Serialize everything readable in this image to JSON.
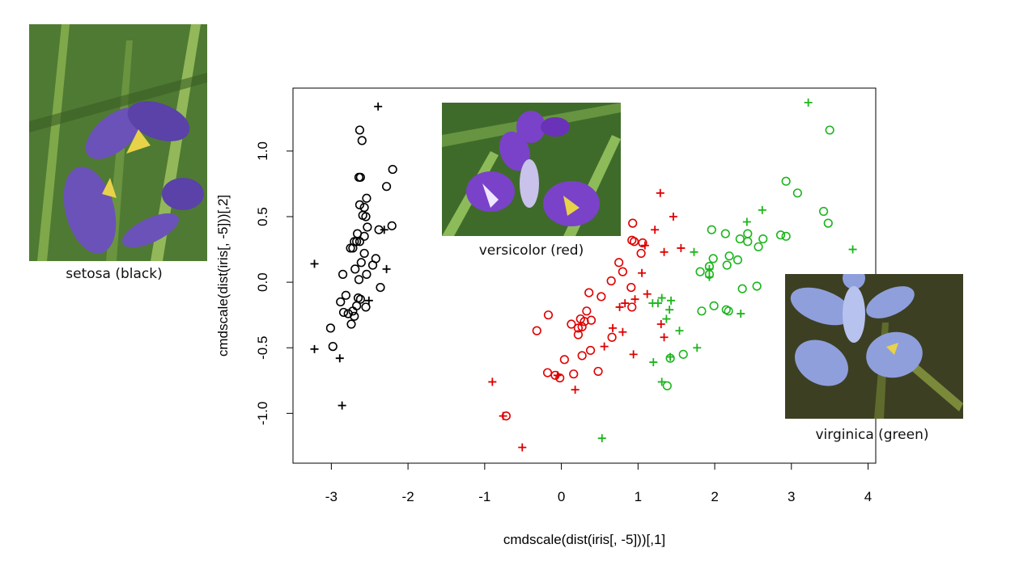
{
  "chart_data": {
    "type": "scatter",
    "xlabel": "cmdscale(dist(iris[, -5]))[,1]",
    "ylabel": "cmdscale(dist(iris[, -5]))[,2]",
    "xlim": [
      -3.5,
      4.1
    ],
    "ylim": [
      -1.38,
      1.48
    ],
    "xticks": [
      -3,
      -2,
      -1,
      0,
      1,
      2,
      3,
      4
    ],
    "yticks": [
      -1.0,
      -0.5,
      0.0,
      0.5,
      1.0
    ],
    "ytick_labels": [
      "-1.0",
      "-0.5",
      "0.0",
      "0.5",
      "1.0"
    ],
    "series": [
      {
        "name": "setosa (black)",
        "color": "#000000",
        "points_circle": [
          [
            -2.63,
            1.16
          ],
          [
            -2.6,
            1.08
          ],
          [
            -2.2,
            0.86
          ],
          [
            -2.64,
            0.8
          ],
          [
            -2.62,
            0.8
          ],
          [
            -2.28,
            0.73
          ],
          [
            -2.54,
            0.64
          ],
          [
            -2.63,
            0.59
          ],
          [
            -2.57,
            0.57
          ],
          [
            -2.59,
            0.51
          ],
          [
            -2.55,
            0.5
          ],
          [
            -2.21,
            0.43
          ],
          [
            -2.53,
            0.42
          ],
          [
            -2.66,
            0.37
          ],
          [
            -2.38,
            0.4
          ],
          [
            -2.57,
            0.35
          ],
          [
            -2.7,
            0.31
          ],
          [
            -2.67,
            0.31
          ],
          [
            -2.63,
            0.31
          ],
          [
            -2.75,
            0.26
          ],
          [
            -2.72,
            0.26
          ],
          [
            -2.57,
            0.22
          ],
          [
            -2.42,
            0.18
          ],
          [
            -2.46,
            0.13
          ],
          [
            -2.61,
            0.15
          ],
          [
            -2.69,
            0.1
          ],
          [
            -2.85,
            0.06
          ],
          [
            -2.54,
            0.06
          ],
          [
            -2.64,
            0.02
          ],
          [
            -2.36,
            -0.04
          ],
          [
            -2.81,
            -0.1
          ],
          [
            -2.65,
            -0.12
          ],
          [
            -2.62,
            -0.13
          ],
          [
            -2.88,
            -0.15
          ],
          [
            -2.67,
            -0.18
          ],
          [
            -2.55,
            -0.19
          ],
          [
            -2.72,
            -0.22
          ],
          [
            -2.84,
            -0.23
          ],
          [
            -2.78,
            -0.24
          ],
          [
            -2.7,
            -0.26
          ],
          [
            -2.74,
            -0.32
          ],
          [
            -3.01,
            -0.35
          ],
          [
            -2.98,
            -0.49
          ]
        ],
        "points_plus": [
          [
            -2.39,
            1.34
          ],
          [
            -2.31,
            0.4
          ],
          [
            -3.22,
            0.14
          ],
          [
            -2.28,
            0.1
          ],
          [
            -2.51,
            -0.14
          ],
          [
            -3.22,
            -0.51
          ],
          [
            -2.89,
            -0.58
          ],
          [
            -2.86,
            -0.94
          ]
        ]
      },
      {
        "name": "versicolor (red)",
        "color": "#df0000",
        "points_circle": [
          [
            0.93,
            0.45
          ],
          [
            0.92,
            0.32
          ],
          [
            0.95,
            0.31
          ],
          [
            1.06,
            0.3
          ],
          [
            1.04,
            0.22
          ],
          [
            0.75,
            0.15
          ],
          [
            0.8,
            0.08
          ],
          [
            0.65,
            0.01
          ],
          [
            0.91,
            -0.04
          ],
          [
            0.36,
            -0.08
          ],
          [
            0.52,
            -0.11
          ],
          [
            0.92,
            -0.19
          ],
          [
            0.33,
            -0.22
          ],
          [
            -0.17,
            -0.25
          ],
          [
            0.25,
            -0.28
          ],
          [
            0.39,
            -0.29
          ],
          [
            0.3,
            -0.3
          ],
          [
            0.13,
            -0.32
          ],
          [
            0.27,
            -0.34
          ],
          [
            0.22,
            -0.35
          ],
          [
            -0.32,
            -0.37
          ],
          [
            0.22,
            -0.4
          ],
          [
            0.66,
            -0.42
          ],
          [
            0.38,
            -0.52
          ],
          [
            0.27,
            -0.56
          ],
          [
            0.04,
            -0.59
          ],
          [
            0.48,
            -0.68
          ],
          [
            -0.18,
            -0.69
          ],
          [
            0.16,
            -0.7
          ],
          [
            -0.08,
            -0.71
          ],
          [
            -0.02,
            -0.73
          ],
          [
            -0.72,
            -1.02
          ]
        ],
        "points_plus": [
          [
            1.29,
            0.68
          ],
          [
            1.46,
            0.5
          ],
          [
            1.22,
            0.4
          ],
          [
            1.09,
            0.28
          ],
          [
            1.56,
            0.26
          ],
          [
            1.34,
            0.23
          ],
          [
            1.05,
            0.07
          ],
          [
            1.12,
            -0.09
          ],
          [
            0.96,
            -0.13
          ],
          [
            0.83,
            -0.16
          ],
          [
            0.76,
            -0.19
          ],
          [
            1.3,
            -0.32
          ],
          [
            0.67,
            -0.35
          ],
          [
            0.8,
            -0.38
          ],
          [
            1.34,
            -0.42
          ],
          [
            0.56,
            -0.49
          ],
          [
            0.94,
            -0.55
          ],
          [
            -0.05,
            -0.71
          ],
          [
            -0.9,
            -0.76
          ],
          [
            0.18,
            -0.82
          ],
          [
            -0.76,
            -1.02
          ],
          [
            -0.51,
            -1.26
          ]
        ]
      },
      {
        "name": "virginica (green)",
        "color": "#1db51d",
        "points_circle": [
          [
            3.5,
            1.16
          ],
          [
            2.93,
            0.77
          ],
          [
            3.08,
            0.68
          ],
          [
            3.42,
            0.54
          ],
          [
            3.48,
            0.45
          ],
          [
            1.96,
            0.4
          ],
          [
            2.14,
            0.37
          ],
          [
            2.43,
            0.37
          ],
          [
            2.86,
            0.36
          ],
          [
            2.93,
            0.35
          ],
          [
            2.33,
            0.33
          ],
          [
            2.63,
            0.33
          ],
          [
            2.43,
            0.31
          ],
          [
            2.57,
            0.27
          ],
          [
            2.19,
            0.2
          ],
          [
            1.98,
            0.18
          ],
          [
            2.3,
            0.17
          ],
          [
            1.93,
            0.12
          ],
          [
            2.16,
            0.13
          ],
          [
            1.81,
            0.08
          ],
          [
            1.93,
            0.06
          ],
          [
            2.55,
            -0.03
          ],
          [
            2.36,
            -0.05
          ],
          [
            1.99,
            -0.18
          ],
          [
            2.15,
            -0.21
          ],
          [
            2.18,
            -0.22
          ],
          [
            1.83,
            -0.22
          ],
          [
            1.59,
            -0.55
          ],
          [
            1.42,
            -0.58
          ],
          [
            1.38,
            -0.79
          ]
        ],
        "points_plus": [
          [
            3.22,
            1.37
          ],
          [
            2.62,
            0.55
          ],
          [
            2.42,
            0.46
          ],
          [
            3.8,
            0.25
          ],
          [
            1.73,
            0.23
          ],
          [
            1.93,
            0.1
          ],
          [
            1.93,
            0.04
          ],
          [
            1.31,
            -0.12
          ],
          [
            1.43,
            -0.14
          ],
          [
            1.19,
            -0.16
          ],
          [
            1.26,
            -0.16
          ],
          [
            1.41,
            -0.21
          ],
          [
            2.34,
            -0.24
          ],
          [
            1.37,
            -0.28
          ],
          [
            1.54,
            -0.37
          ],
          [
            1.77,
            -0.5
          ],
          [
            1.42,
            -0.57
          ],
          [
            1.2,
            -0.61
          ],
          [
            1.31,
            -0.76
          ],
          [
            0.53,
            -1.19
          ]
        ]
      }
    ]
  },
  "photos": [
    {
      "name": "setosa-photo",
      "caption": "setosa (black)",
      "petal": "#6b52b8",
      "petal_dark": "#3d2a86",
      "bg": "#4f7a33"
    },
    {
      "name": "versicolor-photo",
      "caption": "versicolor (red)",
      "petal": "#7a42c8",
      "petal_dark": "#4a1e94",
      "bg": "#3f6b2a"
    },
    {
      "name": "virginica-photo",
      "caption": "virginica (green)",
      "petal": "#8f9fdc",
      "petal_dark": "#6674bf",
      "bg": "#3d3f22"
    }
  ]
}
